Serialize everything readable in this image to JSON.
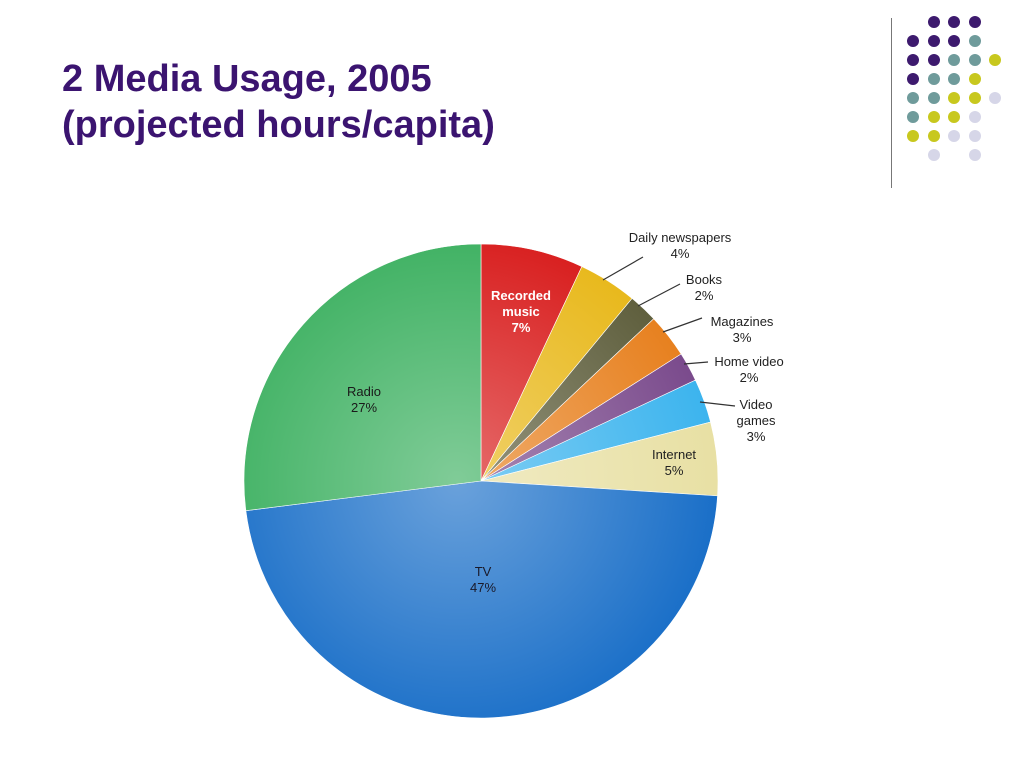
{
  "slide": {
    "title_line1": "2 Media Usage, 2005",
    "title_line2": "(projected hours/capita)"
  },
  "decor": {
    "colors": {
      "purple": "#3d1a6e",
      "teal": "#6f9b9b",
      "olive": "#c8c81e",
      "lavender": "#d6d6e8"
    }
  },
  "chart_data": {
    "type": "pie",
    "title": "",
    "slices": [
      {
        "label": "Recorded music",
        "value": 7,
        "label_text": [
          "Recorded",
          "music",
          "7%"
        ],
        "color": "#d81c1c"
      },
      {
        "label": "Daily newspapers",
        "value": 4,
        "label_text": [
          "Daily  newspapers",
          "4%"
        ],
        "color": "#e8b81a"
      },
      {
        "label": "Books",
        "value": 2,
        "label_text": [
          "Books",
          "2%"
        ],
        "color": "#5e5e3c"
      },
      {
        "label": "Magazines",
        "value": 3,
        "label_text": [
          "Magazines",
          "3%"
        ],
        "color": "#e7801e"
      },
      {
        "label": "Home video",
        "value": 2,
        "label_text": [
          "Home video",
          "2%"
        ],
        "color": "#7a4a8c"
      },
      {
        "label": "Video games",
        "value": 3,
        "label_text": [
          "Video",
          "games",
          "3%"
        ],
        "color": "#3cb4ee"
      },
      {
        "label": "Internet",
        "value": 5,
        "label_text": [
          "Internet",
          "5%"
        ],
        "color": "#e8e0a4"
      },
      {
        "label": "TV",
        "value": 47,
        "label_text": [
          "TV",
          "47%"
        ],
        "color": "#1a6fc8"
      },
      {
        "label": "Radio",
        "value": 27,
        "label_text": [
          "Radio",
          "27%"
        ],
        "color": "#3cb060"
      }
    ],
    "start": "12 o'clock, clockwise",
    "legend": "none (labels on/next to slices)"
  }
}
